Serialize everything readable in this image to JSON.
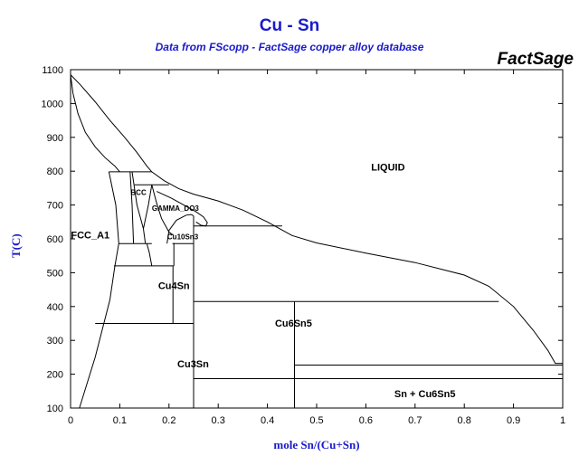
{
  "chart_data": {
    "type": "line",
    "title": "Cu - Sn",
    "subtitle": "Data from FScopp - FactSage copper alloy database",
    "brand": "FactSage",
    "xlabel": "mole Sn/(Cu+Sn)",
    "ylabel": "T(C)",
    "xlim": [
      0,
      1
    ],
    "ylim": [
      100,
      1100
    ],
    "xticks": [
      0,
      0.1,
      0.2,
      0.3,
      0.4,
      0.5,
      0.6,
      0.7,
      0.8,
      0.9,
      1
    ],
    "xtick_labels": [
      "0",
      "0.1",
      "0.2",
      "0.3",
      "0.4",
      "0.5",
      "0.6",
      "0.7",
      "0.8",
      "0.9",
      "1"
    ],
    "yticks": [
      100,
      200,
      300,
      400,
      500,
      600,
      700,
      800,
      900,
      1000,
      1100
    ],
    "ytick_labels": [
      "100",
      "200",
      "300",
      "400",
      "500",
      "600",
      "700",
      "800",
      "900",
      "1000",
      "1100"
    ],
    "grid": false,
    "line_color": "#000000",
    "region_labels": [
      {
        "text": "LIQUID",
        "x": 0.645,
        "y": 813
      },
      {
        "text": "BCC",
        "x": 0.138,
        "y": 740
      },
      {
        "text": "GAMMA_DO3",
        "x": 0.213,
        "y": 694
      },
      {
        "text": "FCC_A1",
        "x": 0.04,
        "y": 612
      },
      {
        "text": "Cu10Sn3",
        "x": 0.228,
        "y": 610
      },
      {
        "text": "Cu4Sn",
        "x": 0.21,
        "y": 462
      },
      {
        "text": "Cu6Sn5",
        "x": 0.453,
        "y": 352
      },
      {
        "text": "Cu3Sn",
        "x": 0.249,
        "y": 231
      },
      {
        "text": "Sn + Cu6Sn5",
        "x": 0.72,
        "y": 143
      }
    ],
    "series": [
      {
        "points": [
          [
            0.0,
            1085
          ],
          [
            0.02,
            1055
          ],
          [
            0.05,
            1005
          ],
          [
            0.08,
            950
          ],
          [
            0.11,
            900
          ],
          [
            0.135,
            855
          ],
          [
            0.155,
            815
          ],
          [
            0.165,
            798
          ],
          [
            0.19,
            772
          ],
          [
            0.22,
            748
          ],
          [
            0.25,
            732
          ],
          [
            0.3,
            712
          ],
          [
            0.35,
            685
          ],
          [
            0.4,
            650
          ],
          [
            0.45,
            610
          ],
          [
            0.5,
            588
          ],
          [
            0.6,
            558
          ],
          [
            0.7,
            530
          ],
          [
            0.8,
            493
          ],
          [
            0.85,
            460
          ],
          [
            0.9,
            400
          ],
          [
            0.94,
            330
          ],
          [
            0.97,
            270
          ],
          [
            0.985,
            232
          ],
          [
            1.0,
            232
          ]
        ]
      },
      {
        "points": [
          [
            0.0,
            1085
          ],
          [
            0.005,
            1030
          ],
          [
            0.015,
            970
          ],
          [
            0.03,
            915
          ],
          [
            0.05,
            872
          ],
          [
            0.07,
            840
          ],
          [
            0.09,
            815
          ],
          [
            0.1,
            798
          ]
        ]
      },
      {
        "points": [
          [
            0.018,
            100
          ],
          [
            0.05,
            250
          ],
          [
            0.08,
            420
          ],
          [
            0.09,
            520
          ],
          [
            0.098,
            586
          ],
          [
            0.092,
            700
          ],
          [
            0.078,
            798
          ]
        ]
      },
      {
        "points": [
          [
            0.078,
            798
          ],
          [
            0.165,
            798
          ]
        ]
      },
      {
        "points": [
          [
            0.121,
            798
          ],
          [
            0.125,
            700
          ],
          [
            0.128,
            586
          ]
        ]
      },
      {
        "points": [
          [
            0.125,
            798
          ],
          [
            0.135,
            700
          ],
          [
            0.148,
            630
          ],
          [
            0.152,
            586
          ]
        ]
      },
      {
        "points": [
          [
            0.148,
            630
          ],
          [
            0.158,
            700
          ],
          [
            0.165,
            760
          ]
        ]
      },
      {
        "points": [
          [
            0.13,
            760
          ],
          [
            0.2,
            760
          ]
        ]
      },
      {
        "points": [
          [
            0.098,
            586
          ],
          [
            0.165,
            586
          ]
        ]
      },
      {
        "points": [
          [
            0.165,
            520
          ],
          [
            0.16,
            560
          ],
          [
            0.155,
            586
          ]
        ]
      },
      {
        "points": [
          [
            0.165,
            760
          ],
          [
            0.175,
            705
          ],
          [
            0.185,
            660
          ],
          [
            0.2,
            620
          ],
          [
            0.21,
            610
          ]
        ]
      },
      {
        "points": [
          [
            0.175,
            740
          ],
          [
            0.205,
            720
          ],
          [
            0.23,
            700
          ],
          [
            0.255,
            680
          ],
          [
            0.27,
            665
          ],
          [
            0.278,
            648
          ],
          [
            0.275,
            638
          ],
          [
            0.265,
            640
          ],
          [
            0.255,
            650
          ]
        ]
      },
      {
        "points": [
          [
            0.196,
            586
          ],
          [
            0.2,
            625
          ],
          [
            0.215,
            655
          ],
          [
            0.235,
            670
          ],
          [
            0.245,
            672
          ],
          [
            0.25,
            668
          ]
        ]
      },
      {
        "points": [
          [
            0.25,
            638
          ],
          [
            0.43,
            638
          ]
        ]
      },
      {
        "points": [
          [
            0.25,
            100
          ],
          [
            0.25,
            668
          ]
        ]
      },
      {
        "points": [
          [
            0.21,
            520
          ],
          [
            0.21,
            588
          ]
        ]
      },
      {
        "points": [
          [
            0.207,
            586
          ],
          [
            0.25,
            586
          ]
        ]
      },
      {
        "points": [
          [
            0.088,
            520
          ],
          [
            0.21,
            520
          ]
        ]
      },
      {
        "points": [
          [
            0.208,
            350
          ],
          [
            0.208,
            520
          ]
        ]
      },
      {
        "points": [
          [
            0.05,
            350
          ],
          [
            0.25,
            350
          ]
        ]
      },
      {
        "points": [
          [
            0.25,
            415
          ],
          [
            0.87,
            415
          ]
        ]
      },
      {
        "points": [
          [
            0.455,
            100
          ],
          [
            0.455,
            415
          ]
        ]
      },
      {
        "points": [
          [
            0.455,
            227
          ],
          [
            1.0,
            227
          ]
        ]
      },
      {
        "points": [
          [
            0.25,
            187
          ],
          [
            1.0,
            187
          ]
        ]
      }
    ]
  }
}
